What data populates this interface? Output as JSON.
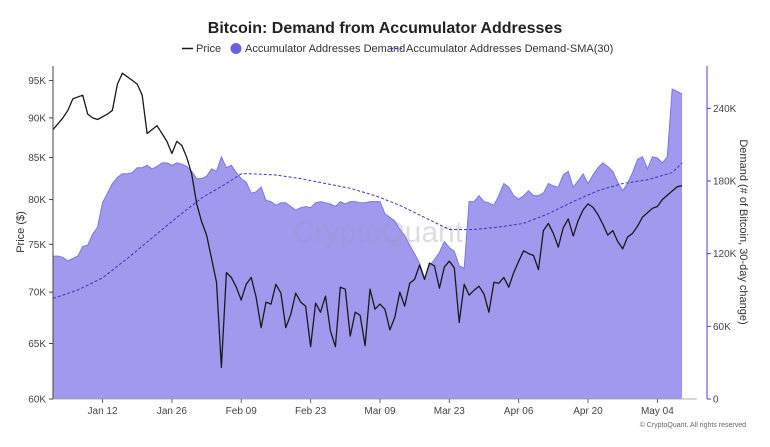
{
  "chart_data": {
    "type": "line",
    "title": "Bitcoin: Demand from Accumulator Addresses",
    "legend": [
      "Price",
      "Accumulator Addresses Demand",
      "Accumulator Addresses Demand-SMA(30)"
    ],
    "legend_position": "top-center",
    "x_tick_labels": [
      "Jan 12",
      "Jan 26",
      "Feb 09",
      "Feb 23",
      "Mar 09",
      "Mar 23",
      "Apr 06",
      "Apr 20",
      "May 04"
    ],
    "x_range": [
      0,
      130
    ],
    "x_tick_positions": [
      10,
      24,
      38,
      52,
      66,
      80,
      94,
      108,
      122
    ],
    "left_axis": {
      "label": "Price ($)",
      "tick_labels": [
        "60K",
        "65K",
        "70K",
        "75K",
        "80K",
        "85K",
        "90K",
        "95K"
      ],
      "tick_values": [
        60000,
        65000,
        70000,
        75000,
        80000,
        85000,
        90000,
        95000
      ],
      "range": [
        60000,
        97000
      ],
      "scale": "log"
    },
    "right_axis": {
      "label": "Demand (# of Bitcoin, 30-day change)",
      "tick_labels": [
        "0",
        "60K",
        "120K",
        "180K",
        "240K"
      ],
      "tick_values": [
        0,
        60000,
        120000,
        180000,
        240000
      ],
      "range": [
        0,
        275000
      ]
    },
    "grid": false,
    "watermark": "CryptoQuant",
    "copyright": "© CryptoQuant. All rights reserved",
    "colors": {
      "price": "#1a1a1a",
      "demand_fill": "#9b93ec",
      "demand_edge": "#7e74e6",
      "sma": "#3b34c8",
      "right_axis": "#4b3fe0"
    },
    "series": [
      {
        "name": "Price",
        "axis": "left",
        "x": [
          0,
          2,
          3,
          4,
          6,
          7,
          8,
          9,
          11,
          12,
          13,
          14,
          16,
          17,
          18,
          19,
          21,
          22,
          23,
          24,
          25,
          26,
          27,
          28,
          29,
          30,
          31,
          32,
          33,
          34,
          35,
          36,
          37,
          38,
          39,
          40,
          41,
          42,
          43,
          44,
          45,
          46,
          47,
          48,
          49,
          50,
          51,
          52,
          53,
          54,
          55,
          56,
          57,
          58,
          59,
          60,
          61,
          62,
          63,
          64,
          65,
          66,
          67,
          68,
          69,
          70,
          71,
          72,
          73,
          74,
          75,
          76,
          77,
          78,
          79,
          80,
          81,
          82,
          83,
          84,
          85,
          86,
          87,
          88,
          89,
          90,
          91,
          92,
          93,
          94,
          95,
          96,
          97,
          98,
          99,
          100,
          101,
          102,
          103,
          104,
          105,
          106,
          107,
          108,
          109,
          110,
          111,
          112,
          113,
          114,
          115,
          116,
          117,
          118,
          119,
          120,
          121,
          122,
          123,
          124,
          125,
          126,
          127
        ],
        "values": [
          88500,
          90000,
          91000,
          92500,
          93000,
          90500,
          90000,
          89800,
          90500,
          91000,
          94500,
          96000,
          95000,
          94500,
          93000,
          88000,
          89000,
          88000,
          87000,
          85500,
          87000,
          86500,
          85000,
          83000,
          79500,
          77500,
          76000,
          73500,
          71000,
          62800,
          72000,
          71500,
          70500,
          69200,
          70800,
          71500,
          69500,
          66500,
          69000,
          68800,
          70800,
          69900,
          66500,
          67800,
          69900,
          69000,
          68600,
          64700,
          68900,
          68000,
          69600,
          66200,
          64700,
          70500,
          70300,
          65700,
          68000,
          67700,
          64800,
          70300,
          68300,
          68800,
          68300,
          66300,
          67500,
          70000,
          68600,
          70900,
          71300,
          72800,
          71300,
          73000,
          72700,
          70400,
          72600,
          73200,
          72500,
          67000,
          70800,
          69700,
          70200,
          70600,
          69800,
          68000,
          71000,
          70900,
          71500,
          70500,
          72000,
          73200,
          74300,
          74000,
          73800,
          72300,
          76500,
          77300,
          76200,
          74700,
          76800,
          77800,
          75900,
          77600,
          78800,
          79500,
          79100,
          78300,
          77200,
          76000,
          76500,
          75300,
          74500,
          75800,
          76200,
          77000,
          78000,
          78500,
          79000,
          79200,
          80000,
          80500,
          81000,
          81500,
          81600
        ]
      },
      {
        "name": "Accumulator Addresses Demand",
        "axis": "right",
        "x": [
          0,
          1,
          2,
          3,
          4,
          5,
          6,
          7,
          8,
          9,
          10,
          11,
          12,
          13,
          14,
          15,
          16,
          17,
          18,
          19,
          20,
          21,
          22,
          23,
          24,
          25,
          26,
          27,
          28,
          29,
          30,
          31,
          32,
          33,
          34,
          35,
          36,
          37,
          38,
          39,
          40,
          41,
          42,
          43,
          44,
          45,
          46,
          47,
          48,
          49,
          50,
          51,
          52,
          53,
          54,
          55,
          56,
          57,
          58,
          59,
          60,
          61,
          62,
          63,
          64,
          65,
          66,
          67,
          68,
          69,
          70,
          71,
          72,
          73,
          74,
          75,
          76,
          77,
          78,
          79,
          80,
          81,
          82,
          83,
          84,
          85,
          86,
          87,
          88,
          89,
          90,
          91,
          92,
          93,
          94,
          95,
          96,
          97,
          98,
          99,
          100,
          101,
          102,
          103,
          104,
          105,
          106,
          107,
          108,
          109,
          110,
          111,
          112,
          113,
          114,
          115,
          116,
          117,
          118,
          119,
          120,
          121,
          122,
          123,
          124,
          125,
          126,
          127
        ],
        "values": [
          118000,
          118000,
          117000,
          114000,
          116000,
          118000,
          126000,
          127000,
          136000,
          142000,
          162000,
          170000,
          178000,
          183000,
          186000,
          186000,
          187000,
          191000,
          191000,
          193000,
          190000,
          192000,
          195000,
          195000,
          193000,
          195000,
          194000,
          192000,
          188000,
          182000,
          182000,
          184000,
          190000,
          188000,
          200000,
          191000,
          193000,
          187000,
          182000,
          179000,
          170000,
          171000,
          175000,
          164000,
          163000,
          160000,
          162000,
          162000,
          159000,
          156000,
          158000,
          159000,
          158000,
          162000,
          163000,
          162000,
          161000,
          159000,
          163000,
          161000,
          163000,
          163000,
          162000,
          162000,
          163000,
          163000,
          163000,
          153000,
          150000,
          147000,
          140000,
          135000,
          127000,
          120000,
          112000,
          100000,
          110000,
          115000,
          121000,
          130000,
          125000,
          122000,
          110000,
          108000,
          163000,
          163000,
          168000,
          163000,
          162000,
          160000,
          168000,
          178000,
          175000,
          168000,
          165000,
          168000,
          172000,
          168000,
          168000,
          170000,
          178000,
          176000,
          175000,
          185000,
          188000,
          175000,
          180000,
          186000,
          178000,
          185000,
          191000,
          195000,
          192000,
          188000,
          179000,
          172000,
          178000,
          187000,
          198000,
          200000,
          190000,
          200000,
          199000,
          195000,
          200000,
          256000,
          254000,
          252000
        ]
      },
      {
        "name": "Accumulator Addresses Demand-SMA(30)",
        "axis": "right",
        "x": [
          0,
          5,
          10,
          15,
          20,
          25,
          30,
          35,
          38,
          40,
          45,
          50,
          55,
          60,
          65,
          70,
          75,
          80,
          85,
          90,
          95,
          100,
          105,
          110,
          115,
          120,
          125,
          127
        ],
        "values": [
          83000,
          90000,
          100000,
          116000,
          133000,
          150000,
          166000,
          178000,
          186000,
          186000,
          185000,
          182000,
          178000,
          174000,
          168000,
          160000,
          150000,
          140000,
          140000,
          142000,
          145000,
          153000,
          163000,
          172000,
          178000,
          181000,
          187000,
          195000
        ]
      }
    ]
  }
}
